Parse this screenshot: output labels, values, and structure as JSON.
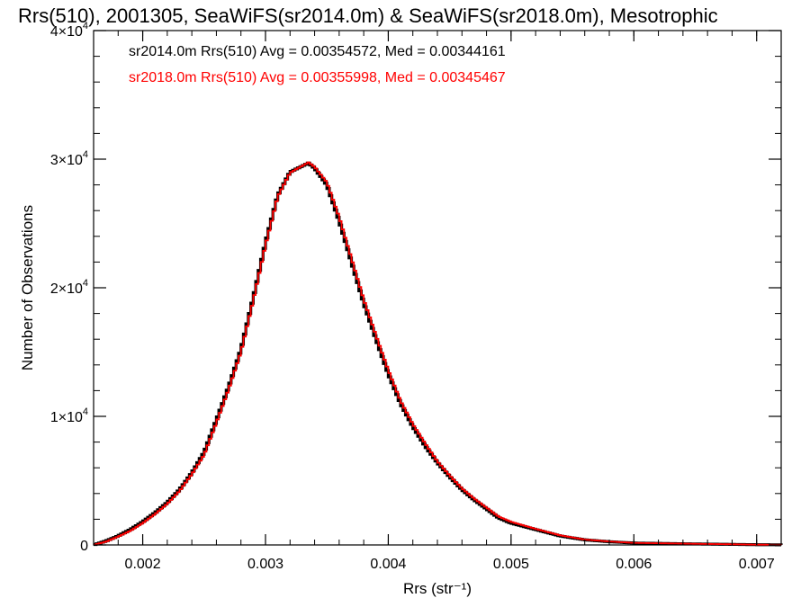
{
  "chart_data": {
    "type": "line",
    "title": "Rrs(510), 2001305, SeaWiFS(sr2014.0m) & SeaWiFS(sr2018.0m), Mesotrophic",
    "xlabel": "Rrs (str⁻¹)",
    "ylabel": "Number of Observations",
    "xlim": [
      0.0016,
      0.0072
    ],
    "ylim": [
      0,
      40000
    ],
    "x_ticks": [
      {
        "value": 0.002,
        "label": "0.002"
      },
      {
        "value": 0.003,
        "label": "0.003"
      },
      {
        "value": 0.004,
        "label": "0.004"
      },
      {
        "value": 0.005,
        "label": "0.005"
      },
      {
        "value": 0.006,
        "label": "0.006"
      },
      {
        "value": 0.007,
        "label": "0.007"
      }
    ],
    "y_ticks": [
      {
        "value": 0,
        "base": "0",
        "exp": ""
      },
      {
        "value": 10000,
        "base": "1×10",
        "exp": "4"
      },
      {
        "value": 20000,
        "base": "2×10",
        "exp": "4"
      },
      {
        "value": 30000,
        "base": "3×10",
        "exp": "4"
      },
      {
        "value": 40000,
        "base": "4×10",
        "exp": "4"
      }
    ],
    "grid": false,
    "legend_placement": "top-left",
    "series": [
      {
        "name": "sr2014.0m Rrs(510) Avg = 0.00354572, Med = 0.00344161",
        "color": "#000000",
        "points": [
          [
            0.0016,
            0
          ],
          [
            0.0017,
            300
          ],
          [
            0.0018,
            700
          ],
          [
            0.0019,
            1200
          ],
          [
            0.002,
            1800
          ],
          [
            0.0021,
            2500
          ],
          [
            0.0022,
            3300
          ],
          [
            0.0023,
            4300
          ],
          [
            0.0024,
            5600
          ],
          [
            0.0025,
            7200
          ],
          [
            0.0026,
            9700
          ],
          [
            0.0027,
            12300
          ],
          [
            0.0028,
            15200
          ],
          [
            0.0029,
            19200
          ],
          [
            0.003,
            23500
          ],
          [
            0.0031,
            27200
          ],
          [
            0.0032,
            29000
          ],
          [
            0.00335,
            29700
          ],
          [
            0.0034,
            29300
          ],
          [
            0.0035,
            28000
          ],
          [
            0.0036,
            25200
          ],
          [
            0.0037,
            22000
          ],
          [
            0.0038,
            18800
          ],
          [
            0.0039,
            16000
          ],
          [
            0.004,
            13300
          ],
          [
            0.0041,
            11000
          ],
          [
            0.0042,
            9200
          ],
          [
            0.0043,
            7700
          ],
          [
            0.0044,
            6400
          ],
          [
            0.0045,
            5300
          ],
          [
            0.0046,
            4300
          ],
          [
            0.0047,
            3500
          ],
          [
            0.0048,
            2800
          ],
          [
            0.0049,
            2100
          ],
          [
            0.005,
            1700
          ],
          [
            0.0052,
            1200
          ],
          [
            0.0054,
            700
          ],
          [
            0.0056,
            400
          ],
          [
            0.0058,
            250
          ],
          [
            0.006,
            150
          ],
          [
            0.0065,
            80
          ],
          [
            0.007,
            20
          ],
          [
            0.0072,
            10
          ]
        ]
      },
      {
        "name": "sr2018.0m Rrs(510) Avg = 0.00355998, Med = 0.00345467",
        "color": "#ff0000",
        "points": [
          [
            0.0016,
            0
          ],
          [
            0.0017,
            250
          ],
          [
            0.0018,
            650
          ],
          [
            0.0019,
            1100
          ],
          [
            0.002,
            1700
          ],
          [
            0.0021,
            2400
          ],
          [
            0.0022,
            3200
          ],
          [
            0.0023,
            4200
          ],
          [
            0.0024,
            5500
          ],
          [
            0.0025,
            7000
          ],
          [
            0.0026,
            9500
          ],
          [
            0.0027,
            12100
          ],
          [
            0.0028,
            15000
          ],
          [
            0.0029,
            19000
          ],
          [
            0.003,
            23300
          ],
          [
            0.0031,
            27100
          ],
          [
            0.0032,
            28950
          ],
          [
            0.00335,
            29750
          ],
          [
            0.0034,
            29400
          ],
          [
            0.0035,
            28200
          ],
          [
            0.0036,
            25500
          ],
          [
            0.0037,
            22300
          ],
          [
            0.0038,
            19100
          ],
          [
            0.0039,
            16300
          ],
          [
            0.004,
            13600
          ],
          [
            0.0041,
            11200
          ],
          [
            0.0042,
            9400
          ],
          [
            0.0043,
            7900
          ],
          [
            0.0044,
            6500
          ],
          [
            0.0045,
            5400
          ],
          [
            0.0046,
            4400
          ],
          [
            0.0047,
            3600
          ],
          [
            0.0048,
            2900
          ],
          [
            0.0049,
            2200
          ],
          [
            0.005,
            1800
          ],
          [
            0.0052,
            1250
          ],
          [
            0.0054,
            750
          ],
          [
            0.0056,
            420
          ],
          [
            0.0058,
            270
          ],
          [
            0.006,
            160
          ],
          [
            0.0065,
            90
          ],
          [
            0.007,
            25
          ],
          [
            0.0072,
            12
          ]
        ]
      }
    ]
  }
}
